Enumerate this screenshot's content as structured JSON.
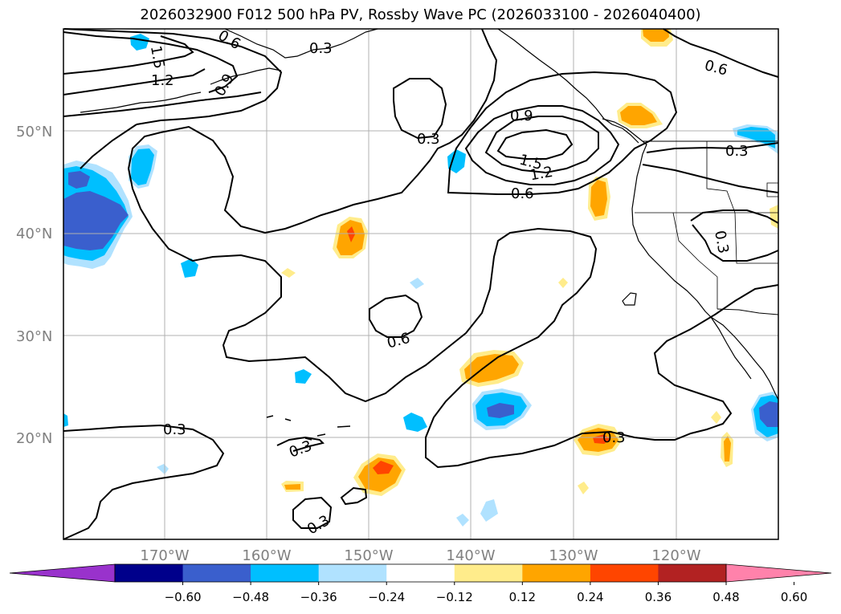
{
  "title": "2026032900 F012 500 hPa PV, Rossby Wave PC (2026033100 - 2026040400)",
  "latitude_labels": [
    "50°N",
    "40°N",
    "30°N",
    "20°N"
  ],
  "longitude_labels": [
    "170°W",
    "160°W",
    "150°W",
    "140°W",
    "130°W",
    "120°W"
  ],
  "contour_labels": [
    "0.6",
    "1.5",
    "1.2",
    "0.9",
    "0.3",
    "0.9",
    "1.5",
    "1.2",
    "0.6",
    "0.6",
    "0.3",
    "0.3",
    "0.6",
    "0.3",
    "0.3",
    "0.3",
    "0.3"
  ],
  "colorbar": {
    "ticks": [
      "−0.60",
      "−0.48",
      "−0.36",
      "−0.24",
      "−0.12",
      "0.12",
      "0.24",
      "0.36",
      "0.48",
      "0.60"
    ],
    "colors": [
      "#9932cc",
      "#00008b",
      "#3a5fcd",
      "#00bfff",
      "#b0e2ff",
      "#ffffff",
      "#ffec8b",
      "#ffa500",
      "#ff4500",
      "#b22222",
      "#ff82ab"
    ]
  },
  "colors": {
    "strong_negative": "#3a5fcd",
    "negative": "#00bfff",
    "weak_negative": "#b0e2ff",
    "weak_positive": "#ffec8b",
    "positive": "#ffa500",
    "strong_positive": "#ff4500",
    "grid": "#b0b0b0",
    "axis_label": "#808080"
  }
}
